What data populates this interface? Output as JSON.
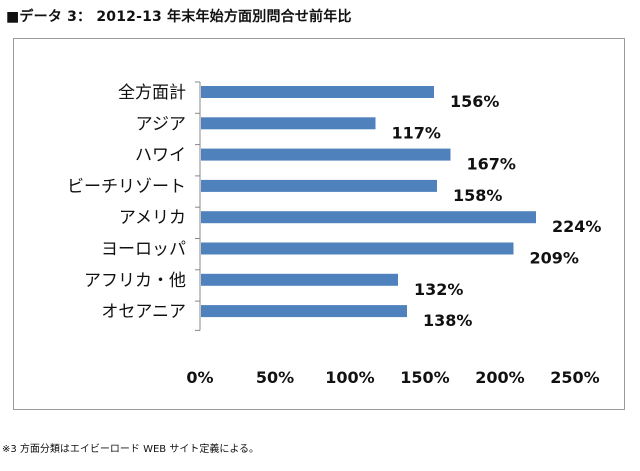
{
  "title": "■データ 3： 2012-13 年末年始方面別問合せ前年比",
  "footnote": "※3 方面分類はエイビーロード WEB サイト定義による。",
  "chart_data": {
    "type": "bar",
    "orientation": "horizontal",
    "categories": [
      "全方面計",
      "アジア",
      "ハワイ",
      "ビーチリゾート",
      "アメリカ",
      "ヨーロッパ",
      "アフリカ・他",
      "オセアニア"
    ],
    "values": [
      156,
      117,
      167,
      158,
      224,
      209,
      132,
      138
    ],
    "value_labels": [
      "156%",
      "117%",
      "167%",
      "158%",
      "224%",
      "209%",
      "132%",
      "138%"
    ],
    "ticks": [
      0,
      50,
      100,
      150,
      200,
      250
    ],
    "tick_labels": [
      "0%",
      "50%",
      "100%",
      "150%",
      "200%",
      "250%"
    ],
    "xlim": [
      0,
      250
    ],
    "bar_color": "#4f81bd",
    "grid": false,
    "legend": "none"
  }
}
